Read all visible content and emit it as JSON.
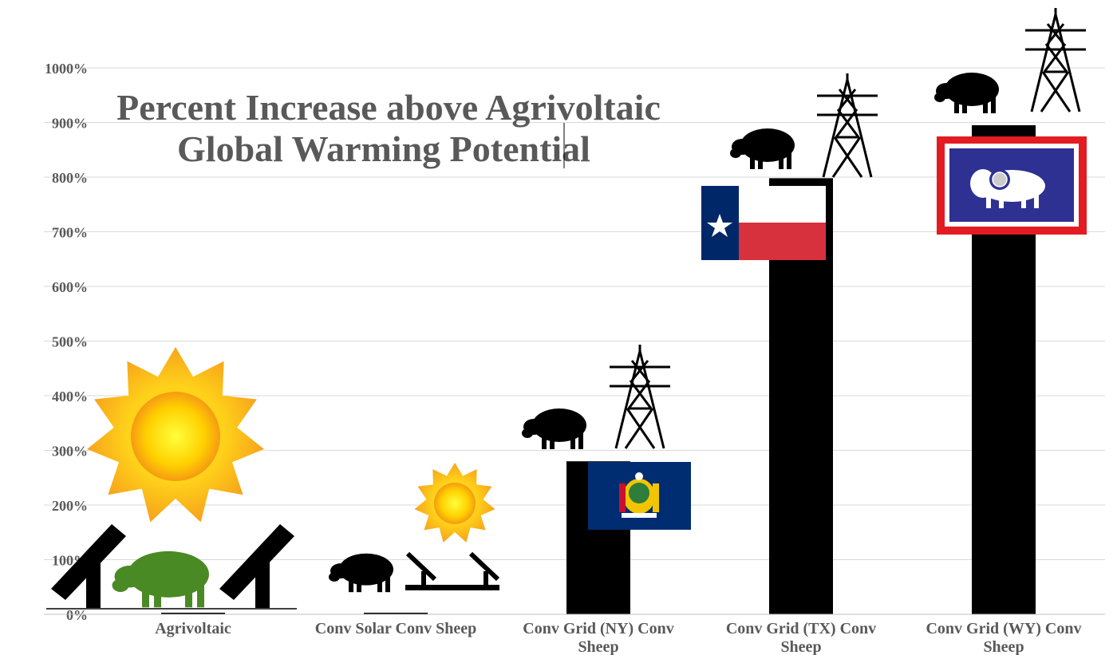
{
  "chart_data": {
    "type": "bar",
    "title_lines": [
      "Percent Increase above Agrivoltaic",
      "Global Warming Potential"
    ],
    "categories": [
      [
        "Agrivoltaic"
      ],
      [
        "Conv Solar  Conv Sheep"
      ],
      [
        "Conv Grid (NY) Conv",
        "Sheep"
      ],
      [
        "Conv Grid (TX) Conv",
        "Sheep"
      ],
      [
        "Conv Grid (WY) Conv",
        "Sheep"
      ]
    ],
    "values": [
      0,
      2,
      280,
      798,
      895
    ],
    "ylim": [
      0,
      1000
    ],
    "yticks": [
      0,
      100,
      200,
      300,
      400,
      500,
      600,
      700,
      800,
      900,
      1000
    ],
    "ytick_labels": [
      "0%",
      "100%",
      "200%",
      "300%",
      "400%",
      "500%",
      "600%",
      "700%",
      "800%",
      "900%",
      "1000%"
    ],
    "grid": true,
    "legend": "none",
    "bar_color": "#000000",
    "grid_color": "#d9d9d9",
    "text_color": "#595959"
  },
  "decorations": {
    "icons": [
      "sun-icon",
      "solar-panel-icon",
      "sheep-icon",
      "transmission-tower-icon",
      "new-york-flag-icon",
      "texas-flag-icon",
      "wyoming-flag-icon"
    ],
    "colors": {
      "sun_outer": "#f7a81b",
      "sun_inner": "#ffe600",
      "sheep_agrivoltaic": "#4a8a25",
      "ny_flag": "#002d72",
      "tx_blue": "#002868",
      "tx_red": "#d6313d",
      "wy_blue": "#2e3192",
      "wy_red": "#e31b23"
    }
  }
}
